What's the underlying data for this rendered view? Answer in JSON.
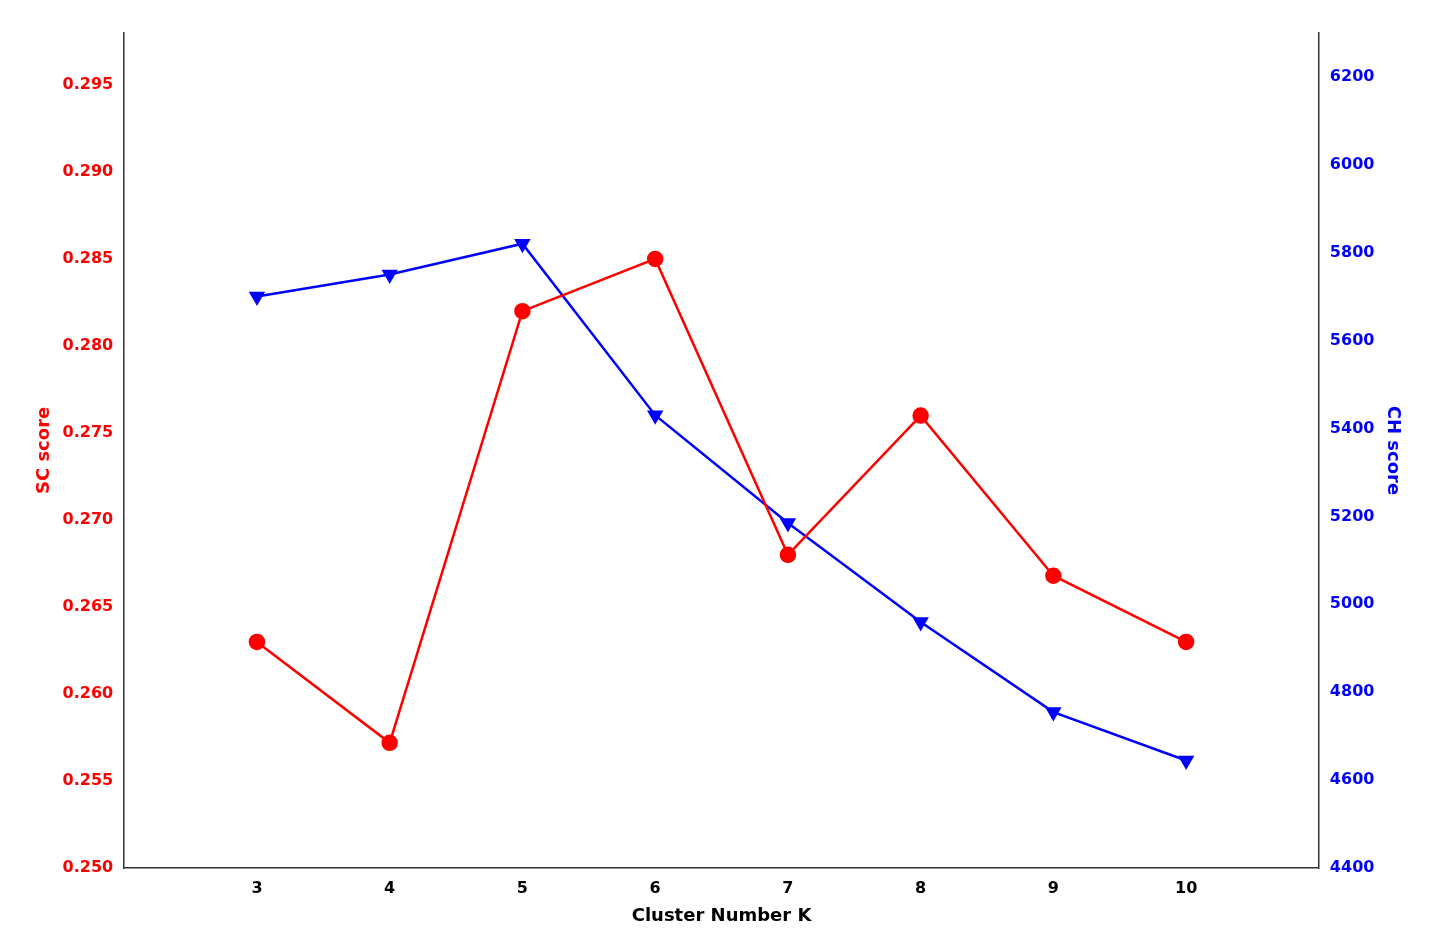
{
  "chart_data": {
    "type": "line",
    "xlabel": "Cluster Number K",
    "ylabel": "SC score",
    "y2label": "CH score",
    "x": [
      3,
      4,
      5,
      6,
      7,
      8,
      9,
      10
    ],
    "series": [
      {
        "color": "red",
        "marker": "circle",
        "values": [
          0.263,
          0.2572,
          0.282,
          0.285,
          0.268,
          0.276,
          0.2668,
          0.263
        ]
      },
      {
        "color": "blue",
        "marker": "triangle_down",
        "axis": "y2",
        "values": [
          5700,
          5750,
          5820,
          5430,
          5185,
          4960,
          4755,
          4645
        ]
      }
    ],
    "xlim": [
      2,
      11
    ],
    "xticks": [
      3,
      4,
      5,
      6,
      7,
      8,
      9,
      10
    ],
    "ylim": [
      0.25,
      0.298
    ],
    "yticks": [
      {
        "value": 0.25,
        "label": "0.250"
      },
      0.255,
      {
        "value": 0.26,
        "label": "0.260"
      },
      0.265,
      {
        "value": 0.27,
        "label": "0.270"
      },
      0.275,
      {
        "value": 0.28,
        "label": "0.280"
      },
      0.285,
      {
        "value": 0.29,
        "label": "0.290"
      },
      0.295
    ],
    "y2lim": [
      4400,
      6300
    ],
    "y2ticks": [
      4400,
      4600,
      4800,
      5000,
      5200,
      5400,
      5600,
      5800,
      6000,
      6200
    ],
    "grid": false
  }
}
